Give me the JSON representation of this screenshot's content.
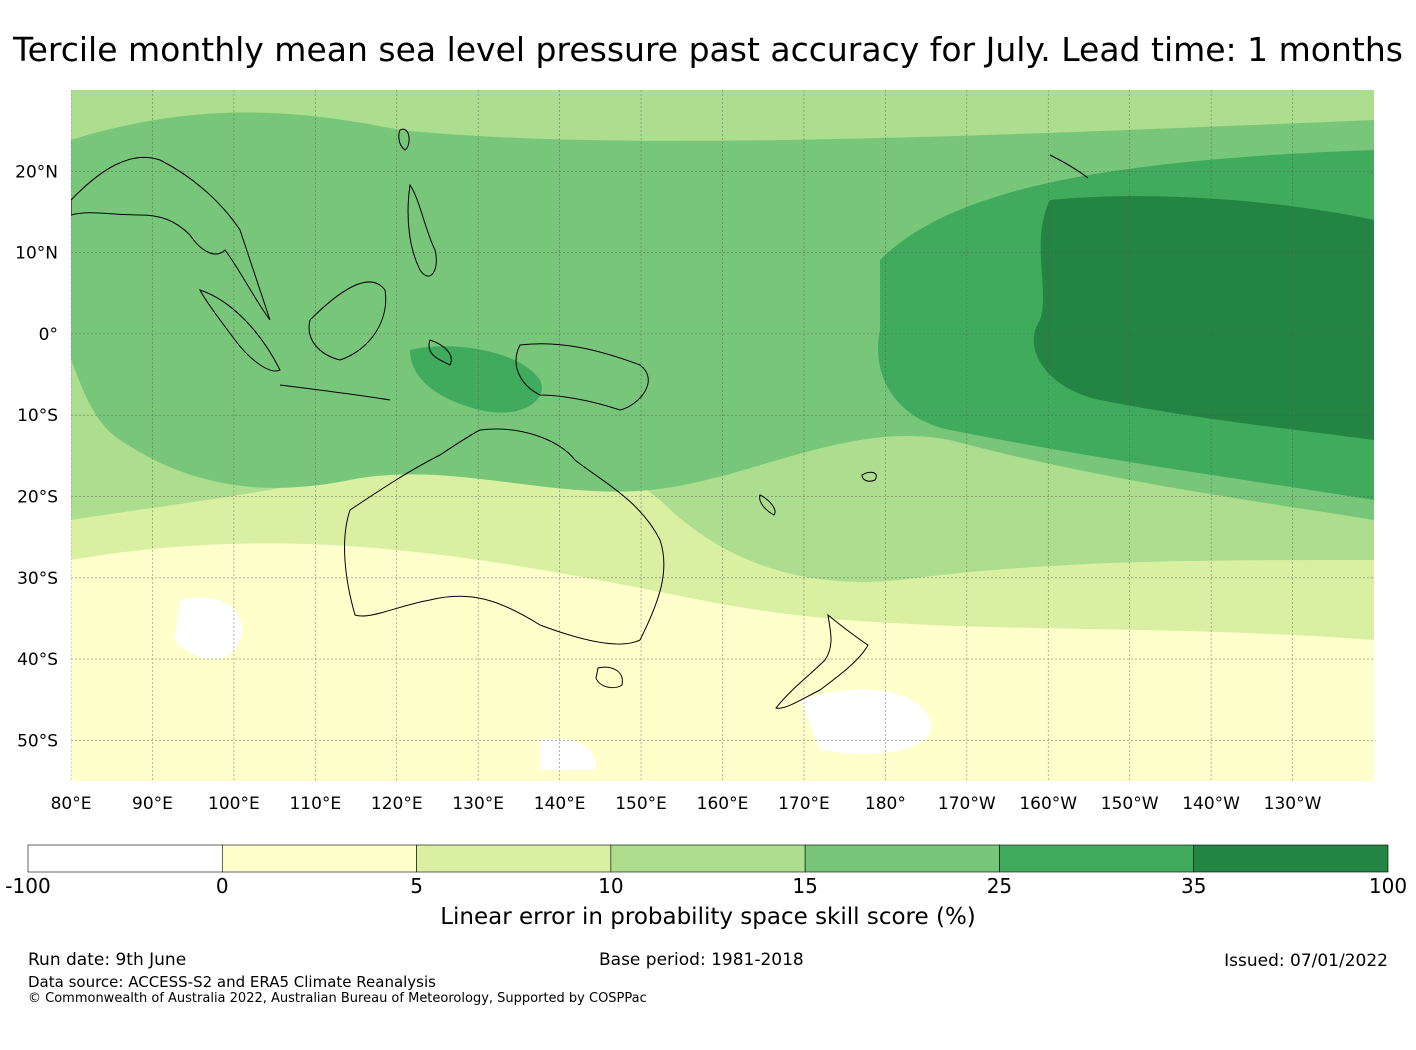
{
  "title": "Tercile monthly mean sea level pressure past accuracy for July. Lead time: 1 months",
  "map": {
    "lat_labels": [
      {
        "lat": 20,
        "text": "20°N"
      },
      {
        "lat": 10,
        "text": "10°N"
      },
      {
        "lat": 0,
        "text": "0°"
      },
      {
        "lat": -10,
        "text": "10°S"
      },
      {
        "lat": -20,
        "text": "20°S"
      },
      {
        "lat": -30,
        "text": "30°S"
      },
      {
        "lat": -40,
        "text": "40°S"
      },
      {
        "lat": -50,
        "text": "50°S"
      }
    ],
    "lon_labels": [
      {
        "lon": 80,
        "text": "80°E"
      },
      {
        "lon": 90,
        "text": "90°E"
      },
      {
        "lon": 100,
        "text": "100°E"
      },
      {
        "lon": 110,
        "text": "110°E"
      },
      {
        "lon": 120,
        "text": "120°E"
      },
      {
        "lon": 130,
        "text": "130°E"
      },
      {
        "lon": 140,
        "text": "140°E"
      },
      {
        "lon": 150,
        "text": "150°E"
      },
      {
        "lon": 160,
        "text": "160°E"
      },
      {
        "lon": 170,
        "text": "170°E"
      },
      {
        "lon": 180,
        "text": "180°"
      },
      {
        "lon": 190,
        "text": "170°W"
      },
      {
        "lon": 200,
        "text": "160°W"
      },
      {
        "lon": 210,
        "text": "150°W"
      },
      {
        "lon": 220,
        "text": "140°W"
      },
      {
        "lon": 230,
        "text": "130°W"
      }
    ],
    "extent": {
      "lon_min": 80,
      "lon_max": 240,
      "lat_min": -55,
      "lat_max": 30
    },
    "gridlines": true
  },
  "colorbar": {
    "title": "Linear error in probability space skill score (%)",
    "ticks": [
      "-100",
      "0",
      "5",
      "10",
      "15",
      "25",
      "35",
      "100"
    ],
    "colors": [
      "#ffffff",
      "#ffffcc",
      "#d9f0a3",
      "#addd8e",
      "#78c679",
      "#41ab5d",
      "#238443"
    ]
  },
  "footer": {
    "run_date": "Run date: 9th June",
    "base_period": "Base period: 1981-2018",
    "issued": "Issued: 07/01/2022",
    "data_source": "Data source: ACCESS-S2 and ERA5 Climate Reanalysis",
    "copyright": "© Commonwealth of Australia 2022, Australian Bureau of Meteorology, Supported by COSPPac"
  }
}
